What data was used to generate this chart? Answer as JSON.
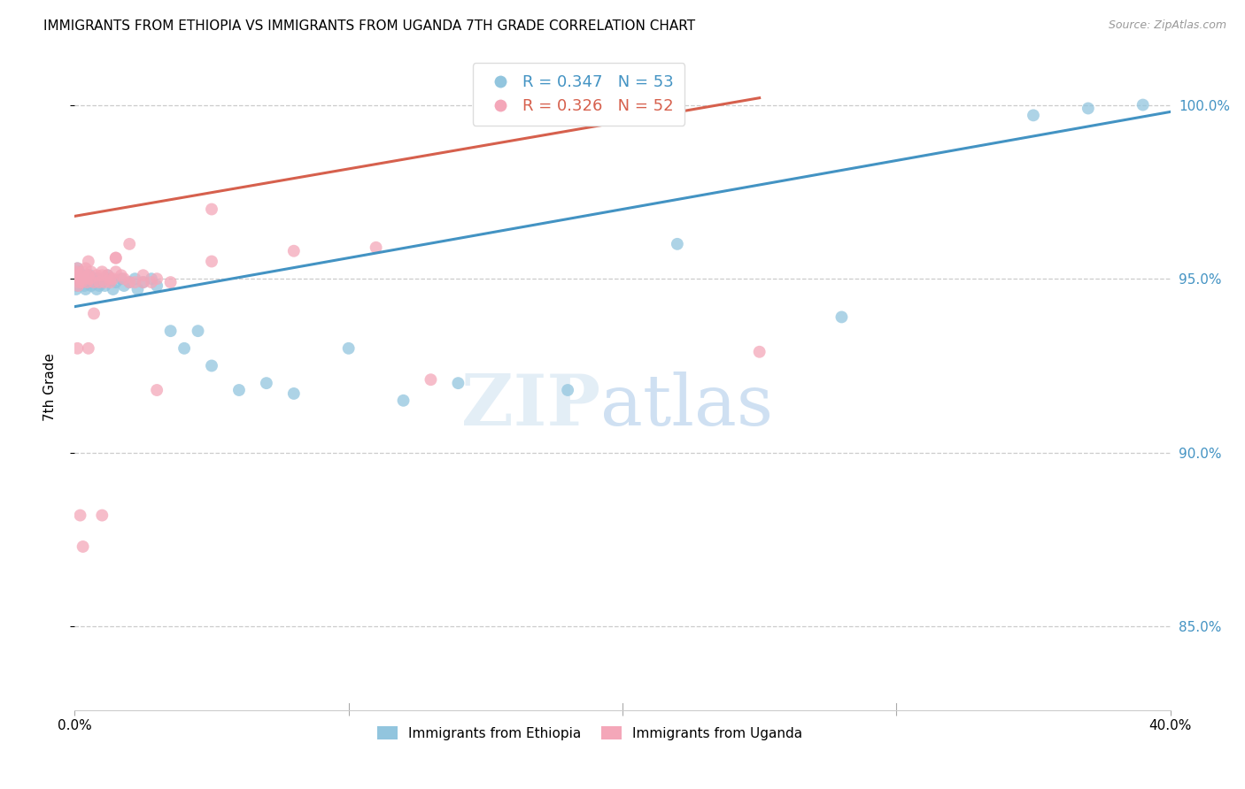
{
  "title": "IMMIGRANTS FROM ETHIOPIA VS IMMIGRANTS FROM UGANDA 7TH GRADE CORRELATION CHART",
  "source": "Source: ZipAtlas.com",
  "ylabel": "7th Grade",
  "ytick_vals": [
    1.0,
    0.95,
    0.9,
    0.85
  ],
  "ytick_labels": [
    "100.0%",
    "95.0%",
    "90.0%",
    "85.0%"
  ],
  "watermark_zip": "ZIP",
  "watermark_atlas": "atlas",
  "legend_label_ethiopia": "Immigrants from Ethiopia",
  "legend_label_uganda": "Immigrants from Uganda",
  "ethiopia_color": "#92c5de",
  "uganda_color": "#f4a7b9",
  "ethiopia_line_color": "#4393c3",
  "uganda_line_color": "#d6604d",
  "xlim": [
    0.0,
    0.4
  ],
  "ylim": [
    0.826,
    1.012
  ],
  "ethiopia_scatter_x": [
    0.0012,
    0.0015,
    0.0008,
    0.002,
    0.0025,
    0.001,
    0.0005,
    0.0018,
    0.003,
    0.0022,
    0.0035,
    0.0028,
    0.004,
    0.005,
    0.0045,
    0.006,
    0.0055,
    0.007,
    0.0065,
    0.008,
    0.0075,
    0.009,
    0.0085,
    0.01,
    0.012,
    0.011,
    0.013,
    0.015,
    0.014,
    0.017,
    0.02,
    0.018,
    0.022,
    0.025,
    0.023,
    0.028,
    0.03,
    0.035,
    0.04,
    0.045,
    0.05,
    0.06,
    0.07,
    0.08,
    0.1,
    0.12,
    0.14,
    0.18,
    0.22,
    0.28,
    0.35,
    0.37,
    0.39
  ],
  "ethiopia_scatter_y": [
    0.95,
    0.952,
    0.948,
    0.951,
    0.949,
    0.953,
    0.947,
    0.95,
    0.951,
    0.949,
    0.948,
    0.95,
    0.947,
    0.95,
    0.949,
    0.948,
    0.951,
    0.949,
    0.95,
    0.947,
    0.949,
    0.948,
    0.95,
    0.949,
    0.951,
    0.948,
    0.95,
    0.949,
    0.947,
    0.95,
    0.949,
    0.948,
    0.95,
    0.949,
    0.947,
    0.95,
    0.948,
    0.935,
    0.93,
    0.935,
    0.925,
    0.918,
    0.92,
    0.917,
    0.93,
    0.915,
    0.92,
    0.918,
    0.96,
    0.939,
    0.997,
    0.999,
    1.0
  ],
  "uganda_scatter_x": [
    0.001,
    0.0008,
    0.0015,
    0.0005,
    0.002,
    0.0012,
    0.0018,
    0.0025,
    0.003,
    0.0035,
    0.004,
    0.0045,
    0.005,
    0.006,
    0.007,
    0.0055,
    0.008,
    0.009,
    0.01,
    0.011,
    0.012,
    0.013,
    0.015,
    0.014,
    0.017,
    0.02,
    0.018,
    0.022,
    0.025,
    0.028,
    0.03,
    0.035,
    0.013,
    0.025,
    0.05,
    0.13,
    0.11,
    0.25,
    0.03,
    0.005,
    0.007,
    0.01,
    0.015,
    0.02,
    0.05,
    0.01,
    0.003,
    0.002,
    0.001,
    0.08,
    0.005,
    0.015
  ],
  "uganda_scatter_y": [
    0.953,
    0.951,
    0.949,
    0.952,
    0.95,
    0.948,
    0.951,
    0.949,
    0.952,
    0.95,
    0.953,
    0.949,
    0.951,
    0.952,
    0.949,
    0.95,
    0.951,
    0.949,
    0.952,
    0.949,
    0.951,
    0.949,
    0.952,
    0.95,
    0.951,
    0.949,
    0.95,
    0.949,
    0.951,
    0.949,
    0.95,
    0.949,
    0.95,
    0.949,
    0.955,
    0.921,
    0.959,
    0.929,
    0.918,
    0.93,
    0.94,
    0.951,
    0.956,
    0.96,
    0.97,
    0.882,
    0.873,
    0.882,
    0.93,
    0.958,
    0.955,
    0.956
  ],
  "ethiopia_trendline_x": [
    0.0,
    0.4
  ],
  "ethiopia_trendline_y": [
    0.942,
    0.998
  ],
  "uganda_trendline_x": [
    0.0,
    0.25
  ],
  "uganda_trendline_y": [
    0.968,
    1.002
  ]
}
